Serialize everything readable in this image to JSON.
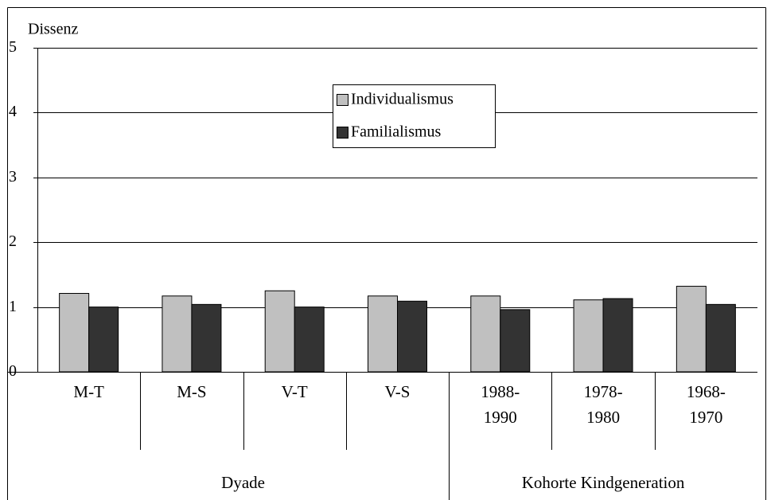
{
  "chart_data": {
    "type": "bar",
    "y_label": "Dissenz",
    "groups": [
      {
        "name": "Dyade",
        "categories": [
          "M-T",
          "M-S",
          "V-T",
          "V-S"
        ]
      },
      {
        "name": "Kohorte Kindgeneration",
        "categories": [
          "1988-\n1990",
          "1978-\n1980",
          "1968-\n1970"
        ]
      }
    ],
    "series": [
      {
        "name": "Individualismus",
        "color": "#c0c0c0",
        "values": [
          1.21,
          1.17,
          1.25,
          1.17,
          1.17,
          1.11,
          1.32
        ]
      },
      {
        "name": "Familialismus",
        "color": "#333333",
        "values": [
          1.0,
          1.04,
          1.0,
          1.09,
          0.96,
          1.13,
          1.04
        ]
      }
    ],
    "ylim": [
      0,
      5
    ],
    "yticks": [
      0,
      1,
      2,
      3,
      4,
      5
    ],
    "grid": true,
    "legend": "top-center"
  }
}
